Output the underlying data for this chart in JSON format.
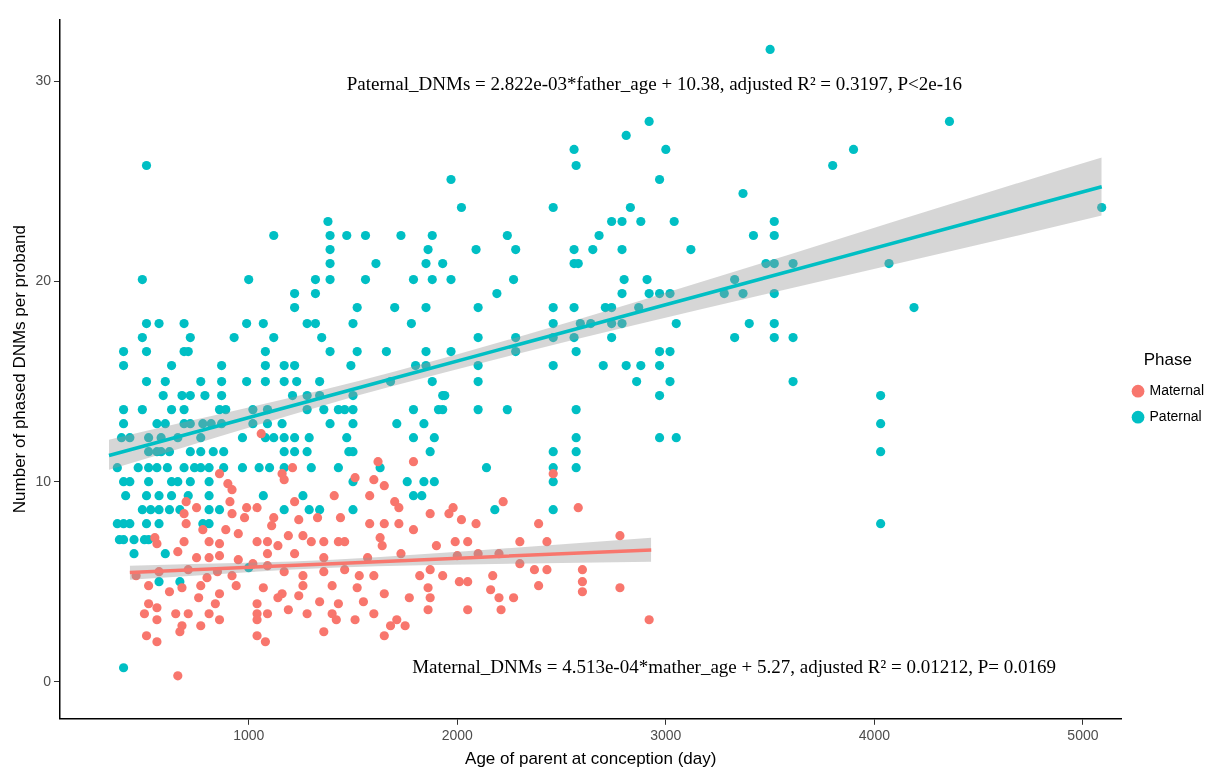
{
  "chart_data": {
    "type": "scatter",
    "xlabel": "Age of parent at conception (day)",
    "ylabel": "Number of phased DNMs per proband",
    "legend_title": "Phase",
    "legend": "right",
    "grid": false,
    "marker": "circle",
    "xlim": [
      95,
      5185
    ],
    "ylim": [
      -1.85,
      33.1
    ],
    "xticks": [
      1000,
      2000,
      3000,
      4000,
      5000
    ],
    "yticks": [
      0,
      10,
      20,
      30
    ],
    "annotations": [
      "Paternal_DNMs = 2.822e-03*father_age + 10.38, adjusted R² = 0.3197, P<2e-16",
      "Maternal_DNMs = 4.513e-04*mather_age + 5.27, adjusted R² = 0.01212, P= 0.0169"
    ],
    "series": [
      {
        "name": "Maternal",
        "color": "#f8766d",
        "x": [
          1060,
          1620,
          1790,
          860,
          1160,
          1210,
          1170,
          2460,
          900,
          920,
          1510,
          1600,
          1650,
          2580,
          1410,
          1580,
          1220,
          2220,
          700,
          750,
          910,
          1700,
          1720,
          990,
          1040,
          1980,
          690,
          920,
          980,
          1120,
          1240,
          1330,
          1440,
          1870,
          1960,
          2020,
          1720,
          1580,
          1650,
          2090,
          2390,
          700,
          780,
          890,
          950,
          1110,
          1190,
          1260,
          1360,
          1430,
          1460,
          1630,
          1790,
          550,
          560,
          690,
          810,
          860,
          1040,
          1090,
          1300,
          1900,
          1990,
          2050,
          2300,
          2430,
          660,
          750,
          810,
          860,
          950,
          1090,
          1140,
          1220,
          1360,
          1570,
          1640,
          1730,
          2000,
          2100,
          2200,
          460,
          570,
          710,
          800,
          850,
          920,
          1020,
          1090,
          1170,
          1260,
          1360,
          1460,
          1530,
          1600,
          1820,
          1870,
          1930,
          2050,
          2170,
          2300,
          2370,
          2430,
          520,
          620,
          680,
          770,
          860,
          940,
          1070,
          1160,
          1260,
          1400,
          1520,
          1650,
          1860,
          2010,
          2160,
          2390,
          520,
          560,
          760,
          840,
          1040,
          1140,
          1240,
          1340,
          1430,
          1550,
          1770,
          1870,
          2200,
          2270,
          500,
          650,
          710,
          810,
          860,
          1040,
          1090,
          1190,
          1280,
          1400,
          1600,
          1860,
          2050,
          2210,
          560,
          770,
          680,
          1040,
          1420,
          1510,
          1710,
          510,
          560,
          670,
          1040,
          1080,
          1360,
          1650,
          1680,
          1750,
          660,
          2780,
          2600,
          2600,
          2600,
          2780,
          2920
        ],
        "values": [
          12.4,
          11.0,
          11.0,
          10.4,
          10.4,
          10.7,
          10.1,
          10.4,
          9.9,
          9.6,
          10.2,
          10.1,
          9.8,
          8.7,
          9.3,
          9.3,
          9.0,
          9.0,
          9.0,
          8.7,
          9.0,
          9.0,
          8.7,
          8.7,
          8.7,
          8.7,
          8.4,
          8.4,
          8.2,
          8.2,
          8.1,
          8.2,
          8.2,
          8.4,
          8.4,
          8.1,
          7.9,
          7.9,
          7.9,
          7.9,
          7.9,
          7.9,
          7.6,
          7.6,
          7.4,
          7.8,
          7.3,
          7.3,
          7.0,
          7.0,
          7.0,
          7.2,
          7.6,
          7.2,
          6.9,
          7.0,
          7.0,
          6.9,
          7.0,
          7.0,
          7.0,
          6.8,
          7.0,
          7.0,
          7.0,
          7.0,
          6.5,
          6.2,
          6.2,
          6.3,
          6.1,
          6.4,
          6.8,
          6.4,
          6.2,
          6.2,
          6.8,
          6.4,
          6.3,
          6.4,
          6.4,
          5.3,
          5.5,
          5.6,
          5.2,
          5.5,
          5.3,
          5.9,
          5.8,
          5.5,
          5.3,
          5.5,
          5.6,
          5.3,
          5.3,
          5.3,
          5.6,
          5.3,
          5.0,
          5.3,
          5.9,
          5.6,
          5.6,
          4.8,
          4.5,
          4.7,
          4.8,
          4.4,
          4.8,
          4.7,
          4.4,
          4.8,
          4.8,
          4.7,
          4.4,
          4.7,
          5.0,
          4.6,
          4.8,
          3.9,
          3.7,
          4.2,
          3.9,
          3.9,
          4.2,
          4.3,
          4.0,
          3.9,
          4.0,
          4.2,
          4.2,
          4.2,
          4.2,
          3.4,
          3.4,
          3.4,
          3.4,
          3.1,
          3.4,
          3.4,
          3.6,
          3.4,
          3.4,
          3.4,
          3.6,
          3.6,
          3.6,
          3.1,
          2.8,
          2.8,
          3.1,
          3.1,
          3.1,
          3.1,
          2.3,
          2.0,
          2.5,
          2.3,
          2.0,
          2.5,
          2.3,
          2.8,
          2.8,
          0.3,
          7.3,
          5.6,
          5.0,
          4.5,
          4.7,
          3.1
        ]
      },
      {
        "name": "Paternal",
        "color": "#00bfc4",
        "x": [
          510,
          490,
          510,
          570,
          490,
          720,
          400,
          510,
          690,
          710,
          690,
          930,
          990,
          1000,
          1070,
          1120,
          1120,
          1080,
          1220,
          1220,
          1280,
          1320,
          1320,
          1320,
          1350,
          1380,
          1390,
          1390,
          1390,
          1390,
          1390,
          1470,
          1500,
          1520,
          1520,
          1560,
          1560,
          1610,
          1660,
          1700,
          1730,
          1780,
          1790,
          1850,
          1860,
          1880,
          1880,
          1850,
          1850,
          1930,
          1970,
          1970,
          1970,
          2020,
          2090,
          2100,
          2100,
          2190,
          2240,
          2280,
          2270,
          2280,
          2280,
          2460,
          2460,
          2460,
          2460,
          2560,
          2570,
          2560,
          2560,
          2580,
          2560,
          2560,
          2570,
          3500,
          2920,
          2810,
          3000,
          2970,
          4360,
          3900,
          3800,
          3370,
          5090,
          2830,
          2740,
          2790,
          2880,
          3040,
          3520,
          2680,
          3420,
          3520,
          2650,
          2790,
          3120,
          3480,
          3520,
          3610,
          4070,
          2800,
          2910,
          3330,
          2790,
          2920,
          2970,
          3020,
          3280,
          3370,
          3520,
          2710,
          2740,
          2870,
          4190,
          2590,
          2640,
          2740,
          2790,
          3050,
          3400,
          3520,
          2740,
          3330,
          3520,
          3610,
          2970,
          3020,
          2700,
          2810,
          2880,
          2970,
          2860,
          3020,
          3610,
          2970,
          4030,
          4030,
          4030,
          4030,
          2570,
          2570,
          2970,
          3050,
          2570,
          2570,
          400,
          630,
          870,
          1080,
          1170,
          1220,
          1490,
          1800,
          1850,
          2100,
          2460,
          510,
          600,
          770,
          870,
          990,
          1080,
          1170,
          1230,
          1340,
          1680,
          1880,
          2100,
          590,
          680,
          720,
          790,
          870,
          1210,
          1280,
          1340,
          1500,
          1930,
          1940,
          400,
          490,
          630,
          690,
          860,
          890,
          1020,
          1090,
          1280,
          1360,
          1430,
          1460,
          1500,
          1790,
          1910,
          1930,
          2100,
          2240,
          400,
          560,
          600,
          690,
          720,
          780,
          820,
          870,
          1020,
          1090,
          1160,
          1390,
          1500,
          1710,
          1840,
          390,
          430,
          520,
          580,
          660,
          770,
          970,
          1080,
          1120,
          1170,
          1220,
          1290,
          1470,
          1790,
          1890,
          520,
          560,
          580,
          620,
          720,
          770,
          830,
          880,
          1170,
          1220,
          1280,
          1480,
          1500,
          1870,
          2460,
          370,
          470,
          520,
          560,
          610,
          690,
          740,
          770,
          810,
          880,
          970,
          1050,
          1100,
          1170,
          1300,
          1430,
          1630,
          2140,
          2460,
          400,
          430,
          520,
          630,
          660,
          720,
          810,
          1500,
          1760,
          1840,
          1890,
          2460,
          410,
          510,
          570,
          630,
          710,
          810,
          1070,
          1260,
          1790,
          1830,
          490,
          530,
          570,
          620,
          670,
          810,
          860,
          1170,
          1290,
          1340,
          1500,
          2180,
          2460,
          370,
          400,
          430,
          510,
          570,
          780,
          810,
          380,
          400,
          450,
          500,
          520,
          450,
          600,
          1000,
          570,
          670,
          400
        ],
        "values": [
          25.8,
          20.1,
          17.9,
          17.9,
          17.2,
          17.2,
          16.5,
          16.5,
          16.5,
          16.5,
          17.9,
          17.2,
          17.9,
          20.1,
          17.9,
          22.3,
          17.2,
          16.5,
          19.4,
          18.7,
          17.9,
          20.1,
          19.4,
          17.9,
          17.2,
          23.0,
          22.3,
          21.6,
          20.9,
          20.1,
          16.5,
          22.3,
          17.9,
          18.7,
          16.5,
          22.3,
          20.1,
          20.9,
          16.5,
          18.7,
          22.3,
          17.9,
          20.1,
          20.9,
          21.6,
          22.3,
          20.1,
          18.7,
          16.5,
          20.9,
          25.1,
          20.1,
          16.5,
          23.7,
          21.6,
          18.7,
          17.2,
          19.4,
          22.3,
          21.6,
          20.1,
          17.2,
          16.5,
          23.7,
          18.7,
          17.9,
          17.2,
          26.6,
          25.8,
          21.6,
          20.9,
          20.9,
          18.7,
          17.2,
          16.5,
          31.6,
          28.0,
          27.3,
          26.6,
          25.1,
          28.0,
          26.6,
          25.8,
          24.4,
          23.7,
          23.7,
          23.0,
          23.0,
          23.0,
          23.0,
          23.0,
          22.3,
          22.3,
          22.3,
          21.6,
          21.6,
          21.6,
          20.9,
          20.9,
          20.9,
          20.9,
          20.1,
          20.1,
          20.1,
          19.4,
          19.4,
          19.4,
          19.4,
          19.4,
          19.4,
          19.4,
          18.7,
          18.7,
          18.7,
          18.7,
          17.9,
          17.9,
          17.9,
          17.9,
          17.9,
          17.9,
          17.9,
          17.2,
          17.2,
          17.2,
          17.2,
          16.5,
          16.5,
          15.8,
          15.8,
          15.8,
          15.8,
          15.0,
          15.0,
          15.0,
          14.3,
          14.3,
          12.9,
          11.5,
          7.9,
          13.6,
          12.2,
          12.2,
          12.2,
          11.5,
          10.7,
          15.8,
          15.8,
          15.8,
          15.8,
          15.8,
          15.8,
          15.8,
          15.8,
          15.8,
          15.8,
          15.8,
          15.0,
          15.0,
          15.0,
          15.0,
          15.0,
          15.0,
          15.0,
          15.0,
          15.0,
          15.0,
          15.0,
          15.0,
          14.3,
          14.3,
          14.3,
          14.3,
          14.3,
          14.3,
          14.3,
          14.3,
          14.3,
          14.3,
          14.3,
          13.6,
          13.6,
          13.6,
          13.6,
          13.6,
          13.6,
          13.6,
          13.6,
          13.6,
          13.6,
          13.6,
          13.6,
          13.6,
          13.6,
          13.6,
          13.6,
          13.6,
          13.6,
          12.9,
          12.9,
          12.9,
          12.9,
          12.9,
          12.9,
          12.9,
          12.9,
          12.9,
          12.9,
          12.9,
          12.9,
          12.9,
          12.9,
          12.9,
          12.2,
          12.2,
          12.2,
          12.2,
          12.2,
          12.2,
          12.2,
          12.2,
          12.2,
          12.2,
          12.2,
          12.2,
          12.2,
          12.2,
          12.2,
          11.5,
          11.5,
          11.5,
          11.5,
          11.5,
          11.5,
          11.5,
          11.5,
          11.5,
          11.5,
          11.5,
          11.5,
          11.5,
          11.5,
          11.5,
          10.7,
          10.7,
          10.7,
          10.7,
          10.7,
          10.7,
          10.7,
          10.7,
          10.7,
          10.7,
          10.7,
          10.7,
          10.7,
          10.7,
          10.7,
          10.7,
          10.7,
          10.7,
          10.7,
          10.0,
          10.0,
          10.0,
          10.0,
          10.0,
          10.0,
          10.0,
          10.0,
          10.0,
          10.0,
          10.0,
          10.0,
          9.3,
          9.3,
          9.3,
          9.3,
          9.3,
          9.3,
          9.3,
          9.3,
          9.3,
          9.3,
          8.6,
          8.6,
          8.6,
          8.6,
          8.6,
          8.6,
          8.6,
          8.6,
          8.6,
          8.6,
          8.6,
          8.6,
          8.6,
          7.9,
          7.9,
          7.9,
          7.9,
          7.9,
          7.9,
          7.9,
          7.1,
          7.1,
          7.1,
          7.1,
          7.1,
          6.4,
          6.4,
          5.7,
          5.0,
          5.0,
          0.7
        ]
      },
      {
        "type": "line",
        "marker": "none",
        "color": "#f8766d",
        "x": [
          430,
          1400,
          2930
        ],
        "values": [
          5.46,
          5.9,
          6.59
        ],
        "lower": [
          5.1,
          5.7,
          6.0
        ],
        "upper": [
          5.8,
          6.1,
          7.2
        ]
      },
      {
        "type": "line",
        "marker": "none",
        "color": "#00bfc4",
        "x": [
          330,
          1700,
          5090
        ],
        "values": [
          11.31,
          15.18,
          24.74
        ],
        "lower": [
          10.6,
          14.8,
          23.3
        ],
        "upper": [
          12.1,
          15.5,
          26.2
        ]
      }
    ]
  }
}
